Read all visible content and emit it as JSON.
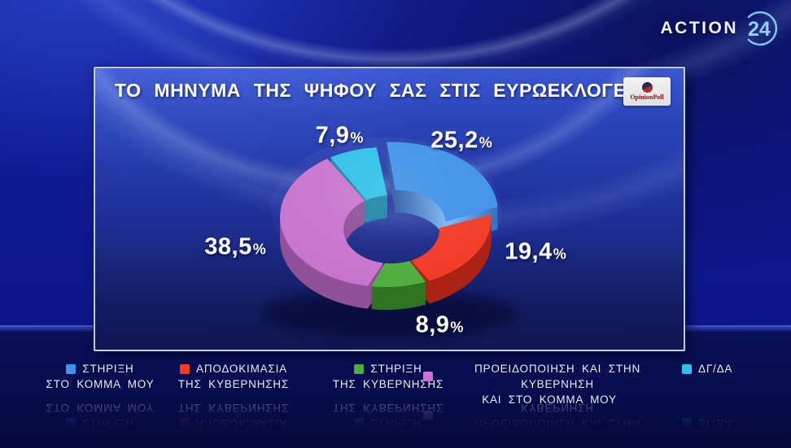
{
  "channel_logo": {
    "text": "ACTION",
    "number": "24"
  },
  "header": {
    "title": "ΤΟ ΜΗΝΥΜΑ ΤΗΣ ΨΗΦΟΥ ΣΑΣ ΣΤΙΣ ΕΥΡΩΕΚΛΟΓΕΣ",
    "pollster": "OpinionPoll"
  },
  "chart_data": {
    "type": "pie",
    "subtype": "3d-donut",
    "title": "ΤΟ ΜΗΝΥΜΑ ΤΗΣ ΨΗΦΟΥ ΣΑΣ ΣΤΙΣ ΕΥΡΩΕΚΛΟΓΕΣ",
    "unit": "%",
    "start_angle_deg": -4,
    "legend_position": "bottom",
    "slices": [
      {
        "label": "ΣΤΗΡΙΞΗ ΣΤΟ ΚΟΜΜΑ ΜΟΥ",
        "value": 25.2,
        "display": "25,2",
        "color": "#3f92e8",
        "side_color": "#2a62b4",
        "exploded": true,
        "side_gradient": [
          "#1d4c9a",
          "#7db9f7",
          "#2f6cc0"
        ]
      },
      {
        "label": "ΑΠΟΔΟΚΙΜΑΣΙΑ ΤΗΣ ΚΥΒΕΡΝΗΣΗΣ",
        "value": 19.4,
        "display": "19,4",
        "color": "#f23b27",
        "side_color": "#aa2315"
      },
      {
        "label": "ΣΤΗΡΙΞΗ ΤΗΣ ΚΥΒΕΡΝΗΣΗΣ",
        "value": 8.9,
        "display": "8,9",
        "color": "#4fae3e",
        "side_color": "#2f7523"
      },
      {
        "label": "ΠΡΟΕΙΔΟΠΟΙΗΣΗ ΚΑΙ ΣΤΗΝ ΚΥΒΕΡΝΗΣΗ ΚΑΙ ΣΤΟ ΚΟΜΜΑ ΜΟΥ",
        "value": 38.5,
        "display": "38,5",
        "color": "#c874ce",
        "side_color": "#90509a"
      },
      {
        "label": "ΔΓ/ΔΑ",
        "value": 7.9,
        "display": "7,9",
        "color": "#2fc1e8",
        "side_color": "#1d85a8"
      }
    ]
  },
  "legend": {
    "items": [
      {
        "line1": "ΣΤΗΡΙΞΗ",
        "line2": "ΣΤΟ ΚΟΜΜΑ ΜΟΥ"
      },
      {
        "line1": "ΑΠΟΔΟΚΙΜΑΣΙΑ",
        "line2": "ΤΗΣ ΚΥΒΕΡΝΗΣΗΣ"
      },
      {
        "line1": "ΣΤΗΡΙΞΗ",
        "line2": "ΤΗΣ ΚΥΒΕΡΝΗΣΗΣ"
      },
      {
        "line1": "ΠΡΟΕΙΔΟΠΟΙΗΣΗ ΚΑΙ ΣΤΗΝ ΚΥΒΕΡΝΗΣΗ",
        "line2": "ΚΑΙ ΣΤΟ ΚΟΜΜΑ ΜΟΥ"
      },
      {
        "line1": "ΔΓ/ΔΑ",
        "line2": ""
      }
    ]
  }
}
